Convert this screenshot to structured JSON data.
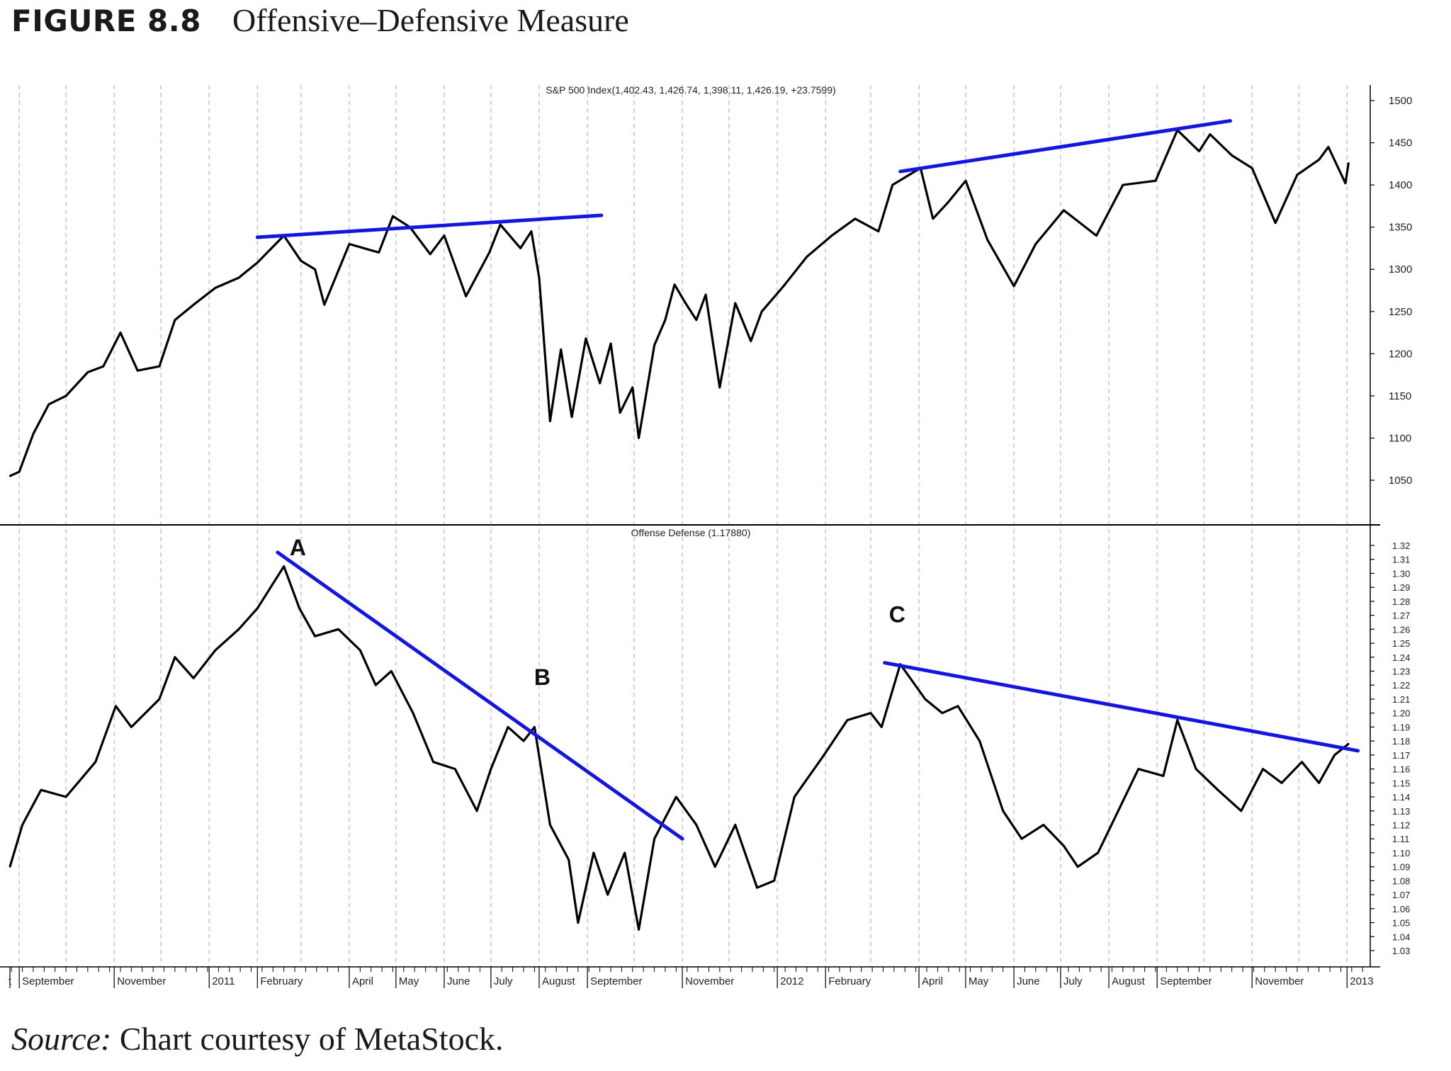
{
  "figure": {
    "number": "FIGURE 8.8",
    "title": "Offensive–Defensive Measure"
  },
  "source": {
    "label": "Source:",
    "text": " Chart courtesy of MetaStock."
  },
  "colors": {
    "price_line": "#000000",
    "trendline": "#1515e0",
    "grid": "#b8b8b8",
    "axis": "#000000"
  },
  "chart_data": [
    {
      "type": "line",
      "title": "S&P 500 Index(1,402.43, 1,426.74, 1,398.11, 1,426.19, +23.7599)",
      "xlabel": "",
      "ylabel": "",
      "x_range": [
        "2010-08-26",
        "2013-01-15"
      ],
      "ylim": [
        1010,
        1510
      ],
      "yticks": [
        1050,
        1100,
        1150,
        1200,
        1250,
        1300,
        1350,
        1400,
        1450,
        1500
      ],
      "y_axis_side": "right",
      "grid": "vertical dashed",
      "series": [
        {
          "values": [
            [
              "2010-08-26",
              1055
            ],
            [
              "2010-09-01",
              1060
            ],
            [
              "2010-09-10",
              1105
            ],
            [
              "2010-09-20",
              1140
            ],
            [
              "2010-10-01",
              1150
            ],
            [
              "2010-10-15",
              1178
            ],
            [
              "2010-10-25",
              1185
            ],
            [
              "2010-11-05",
              1225
            ],
            [
              "2010-11-16",
              1180
            ],
            [
              "2010-11-30",
              1185
            ],
            [
              "2010-12-10",
              1240
            ],
            [
              "2010-12-22",
              1258
            ],
            [
              "2011-01-05",
              1278
            ],
            [
              "2011-01-20",
              1290
            ],
            [
              "2011-02-01",
              1308
            ],
            [
              "2011-02-18",
              1340
            ],
            [
              "2011-03-01",
              1310
            ],
            [
              "2011-03-10",
              1300
            ],
            [
              "2011-03-16",
              1258
            ],
            [
              "2011-04-01",
              1330
            ],
            [
              "2011-04-20",
              1320
            ],
            [
              "2011-04-29",
              1363
            ],
            [
              "2011-05-10",
              1350
            ],
            [
              "2011-05-23",
              1318
            ],
            [
              "2011-06-01",
              1340
            ],
            [
              "2011-06-15",
              1268
            ],
            [
              "2011-06-30",
              1320
            ],
            [
              "2011-07-07",
              1353
            ],
            [
              "2011-07-20",
              1325
            ],
            [
              "2011-07-27",
              1345
            ],
            [
              "2011-08-01",
              1290
            ],
            [
              "2011-08-08",
              1120
            ],
            [
              "2011-08-15",
              1205
            ],
            [
              "2011-08-22",
              1125
            ],
            [
              "2011-08-31",
              1218
            ],
            [
              "2011-09-09",
              1165
            ],
            [
              "2011-09-16",
              1212
            ],
            [
              "2011-09-22",
              1130
            ],
            [
              "2011-09-30",
              1160
            ],
            [
              "2011-10-04",
              1100
            ],
            [
              "2011-10-14",
              1210
            ],
            [
              "2011-10-21",
              1240
            ],
            [
              "2011-10-27",
              1282
            ],
            [
              "2011-11-03",
              1260
            ],
            [
              "2011-11-10",
              1240
            ],
            [
              "2011-11-16",
              1270
            ],
            [
              "2011-11-25",
              1160
            ],
            [
              "2011-12-05",
              1260
            ],
            [
              "2011-12-15",
              1215
            ],
            [
              "2011-12-22",
              1250
            ],
            [
              "2012-01-05",
              1280
            ],
            [
              "2012-01-20",
              1315
            ],
            [
              "2012-02-05",
              1340
            ],
            [
              "2012-02-20",
              1360
            ],
            [
              "2012-03-06",
              1345
            ],
            [
              "2012-03-15",
              1400
            ],
            [
              "2012-04-02",
              1420
            ],
            [
              "2012-04-10",
              1360
            ],
            [
              "2012-04-20",
              1380
            ],
            [
              "2012-05-01",
              1405
            ],
            [
              "2012-05-15",
              1335
            ],
            [
              "2012-06-01",
              1280
            ],
            [
              "2012-06-15",
              1330
            ],
            [
              "2012-07-03",
              1370
            ],
            [
              "2012-07-24",
              1340
            ],
            [
              "2012-08-10",
              1400
            ],
            [
              "2012-08-31",
              1405
            ],
            [
              "2012-09-14",
              1465
            ],
            [
              "2012-09-28",
              1440
            ],
            [
              "2012-10-05",
              1460
            ],
            [
              "2012-10-19",
              1435
            ],
            [
              "2012-11-01",
              1420
            ],
            [
              "2012-11-16",
              1355
            ],
            [
              "2012-11-30",
              1412
            ],
            [
              "2012-12-14",
              1430
            ],
            [
              "2012-12-20",
              1445
            ],
            [
              "2012-12-31",
              1402
            ],
            [
              "2013-01-02",
              1426
            ]
          ]
        }
      ],
      "trendlines": [
        {
          "from": [
            "2011-02-01",
            1338
          ],
          "to": [
            "2011-09-10",
            1364
          ]
        },
        {
          "from": [
            "2012-03-20",
            1416
          ],
          "to": [
            "2012-10-18",
            1476
          ]
        }
      ]
    },
    {
      "type": "line",
      "title": "Offense Defense (1.17880)",
      "xlabel": "",
      "ylabel": "",
      "x_range": [
        "2010-08-26",
        "2013-01-15"
      ],
      "ylim": [
        1.02,
        1.33
      ],
      "yticks": [
        1.03,
        1.04,
        1.05,
        1.06,
        1.07,
        1.08,
        1.09,
        1.1,
        1.11,
        1.12,
        1.13,
        1.14,
        1.15,
        1.16,
        1.17,
        1.18,
        1.19,
        1.2,
        1.21,
        1.22,
        1.23,
        1.24,
        1.25,
        1.26,
        1.27,
        1.28,
        1.29,
        1.3,
        1.31,
        1.32
      ],
      "y_axis_side": "right",
      "grid": "vertical dashed",
      "x_tick_labels": [
        "t",
        "September",
        "November",
        "2011",
        "February",
        "April",
        "May",
        "June",
        "July",
        "August",
        "September",
        "November",
        "2012",
        "February",
        "April",
        "May",
        "June",
        "July",
        "August",
        "September",
        "November",
        "2013"
      ],
      "annotations": [
        {
          "text": "A",
          "x": "2011-02-27",
          "y": 1.313
        },
        {
          "text": "B",
          "x": "2011-08-03",
          "y": 1.22
        },
        {
          "text": "C",
          "x": "2012-03-18",
          "y": 1.265
        }
      ],
      "series": [
        {
          "values": [
            [
              "2010-08-26",
              1.09
            ],
            [
              "2010-09-03",
              1.12
            ],
            [
              "2010-09-15",
              1.145
            ],
            [
              "2010-10-01",
              1.14
            ],
            [
              "2010-10-20",
              1.165
            ],
            [
              "2010-11-02",
              1.205
            ],
            [
              "2010-11-12",
              1.19
            ],
            [
              "2010-11-30",
              1.21
            ],
            [
              "2010-12-10",
              1.24
            ],
            [
              "2010-12-22",
              1.225
            ],
            [
              "2011-01-05",
              1.245
            ],
            [
              "2011-01-20",
              1.26
            ],
            [
              "2011-02-01",
              1.275
            ],
            [
              "2011-02-18",
              1.305
            ],
            [
              "2011-02-28",
              1.275
            ],
            [
              "2011-03-10",
              1.255
            ],
            [
              "2011-03-25",
              1.26
            ],
            [
              "2011-04-08",
              1.245
            ],
            [
              "2011-04-18",
              1.22
            ],
            [
              "2011-04-28",
              1.23
            ],
            [
              "2011-05-12",
              1.2
            ],
            [
              "2011-05-25",
              1.165
            ],
            [
              "2011-06-08",
              1.16
            ],
            [
              "2011-06-22",
              1.13
            ],
            [
              "2011-07-01",
              1.16
            ],
            [
              "2011-07-12",
              1.19
            ],
            [
              "2011-07-22",
              1.18
            ],
            [
              "2011-07-29",
              1.19
            ],
            [
              "2011-08-08",
              1.12
            ],
            [
              "2011-08-20",
              1.095
            ],
            [
              "2011-08-26",
              1.05
            ],
            [
              "2011-09-05",
              1.1
            ],
            [
              "2011-09-14",
              1.07
            ],
            [
              "2011-09-25",
              1.1
            ],
            [
              "2011-10-04",
              1.045
            ],
            [
              "2011-10-14",
              1.11
            ],
            [
              "2011-10-28",
              1.14
            ],
            [
              "2011-11-10",
              1.12
            ],
            [
              "2011-11-22",
              1.09
            ],
            [
              "2011-12-05",
              1.12
            ],
            [
              "2011-12-19",
              1.075
            ],
            [
              "2011-12-30",
              1.08
            ],
            [
              "2012-01-12",
              1.14
            ],
            [
              "2012-01-31",
              1.17
            ],
            [
              "2012-02-15",
              1.195
            ],
            [
              "2012-03-01",
              1.2
            ],
            [
              "2012-03-08",
              1.19
            ],
            [
              "2012-03-20",
              1.235
            ],
            [
              "2012-04-05",
              1.21
            ],
            [
              "2012-04-16",
              1.2
            ],
            [
              "2012-04-26",
              1.205
            ],
            [
              "2012-05-10",
              1.18
            ],
            [
              "2012-05-25",
              1.13
            ],
            [
              "2012-06-06",
              1.11
            ],
            [
              "2012-06-20",
              1.12
            ],
            [
              "2012-07-03",
              1.105
            ],
            [
              "2012-07-12",
              1.09
            ],
            [
              "2012-07-25",
              1.1
            ],
            [
              "2012-08-07",
              1.13
            ],
            [
              "2012-08-20",
              1.16
            ],
            [
              "2012-09-05",
              1.155
            ],
            [
              "2012-09-14",
              1.195
            ],
            [
              "2012-09-26",
              1.16
            ],
            [
              "2012-10-10",
              1.145
            ],
            [
              "2012-10-25",
              1.13
            ],
            [
              "2012-11-08",
              1.16
            ],
            [
              "2012-11-20",
              1.15
            ],
            [
              "2012-12-03",
              1.165
            ],
            [
              "2012-12-14",
              1.15
            ],
            [
              "2012-12-24",
              1.17
            ],
            [
              "2013-01-02",
              1.178
            ]
          ]
        }
      ],
      "trendlines": [
        {
          "from": [
            "2011-02-14",
            1.315
          ],
          "to": [
            "2011-11-01",
            1.11
          ]
        },
        {
          "from": [
            "2012-03-10",
            1.236
          ],
          "to": [
            "2013-01-08",
            1.173
          ]
        }
      ]
    }
  ]
}
